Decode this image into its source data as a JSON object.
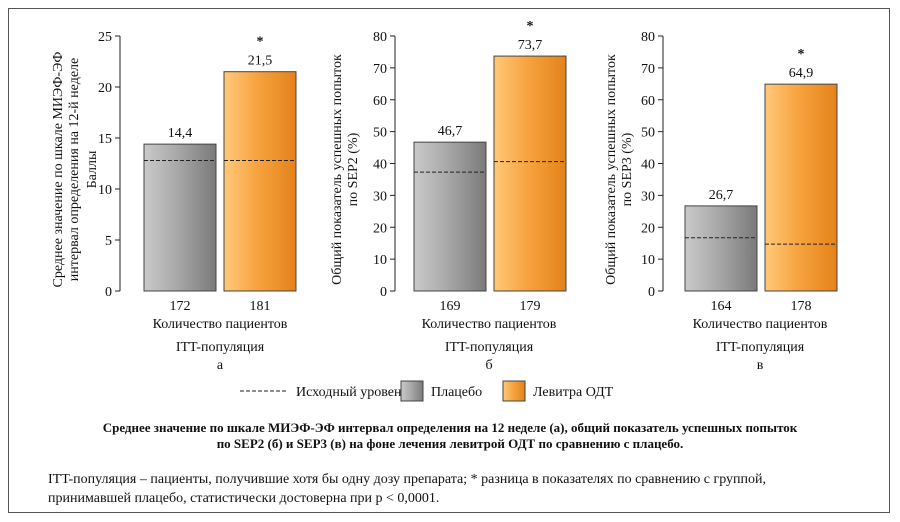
{
  "chart_data": [
    {
      "type": "bar",
      "panel_letter": "а",
      "population": "ITT-популяция",
      "ylabel_lines": [
        "Среднее значение по шкале МИЭФ-ЭФ",
        "интервал определения на 12-й неделе",
        "Баллы"
      ],
      "xlabel": "Количество пациентов",
      "ylim": [
        0,
        25
      ],
      "yticks": [
        0,
        5,
        10,
        15,
        20,
        25
      ],
      "ytick_labels": [
        "0",
        "5",
        "10",
        "15",
        "20",
        "25"
      ],
      "categories": [
        "172",
        "181"
      ],
      "series": [
        {
          "name": "Плацебо",
          "value": 14.4,
          "label": "14,4",
          "baseline": 12.8,
          "color": "#9a9a9a"
        },
        {
          "name": "Левитра ОДТ",
          "value": 21.5,
          "label": "21,5",
          "baseline": 12.8,
          "color": "#f39a2a",
          "significance": "*"
        }
      ]
    },
    {
      "type": "bar",
      "panel_letter": "б",
      "population": "ITT-популяция",
      "ylabel_lines": [
        "Общий показатель успешных попыток",
        "по SEP2 (%)"
      ],
      "xlabel": "Количество пациентов",
      "ylim": [
        0,
        80
      ],
      "yticks": [
        0,
        10,
        20,
        30,
        40,
        50,
        60,
        70,
        80
      ],
      "ytick_labels": [
        "0",
        "10",
        "20",
        "30",
        "40",
        "50",
        "60",
        "70",
        "80"
      ],
      "categories": [
        "169",
        "179"
      ],
      "series": [
        {
          "name": "Плацебо",
          "value": 46.7,
          "label": "46,7",
          "baseline": 37.3,
          "color": "#9a9a9a"
        },
        {
          "name": "Левитра ОДТ",
          "value": 73.7,
          "label": "73,7",
          "baseline": 40.6,
          "color": "#f39a2a",
          "significance": "*"
        }
      ]
    },
    {
      "type": "bar",
      "panel_letter": "в",
      "population": "ITT-популяция",
      "ylabel_lines": [
        "Общий показатель успешных попыток",
        "по SEP3 (%)"
      ],
      "xlabel": "Количество пациентов",
      "ylim": [
        0,
        80
      ],
      "yticks": [
        0,
        10,
        20,
        30,
        40,
        50,
        60,
        70,
        80
      ],
      "ytick_labels": [
        "0",
        "10",
        "20",
        "30",
        "40",
        "50",
        "60",
        "70",
        "80"
      ],
      "categories": [
        "164",
        "178"
      ],
      "series": [
        {
          "name": "Плацебо",
          "value": 26.7,
          "label": "26,7",
          "baseline": 16.7,
          "color": "#9a9a9a"
        },
        {
          "name": "Левитра ОДТ",
          "value": 64.9,
          "label": "64,9",
          "baseline": 14.7,
          "color": "#f39a2a",
          "significance": "*"
        }
      ]
    }
  ],
  "legend": {
    "baseline_label": "Исходный уровень",
    "placebo_label": "Плацебо",
    "levitra_label": "Левитра ОДТ",
    "placebo_color": "#9a9a9a",
    "levitra_color": "#f39a2a"
  },
  "caption": {
    "line1": "Среднее значение по шкале МИЭФ-ЭФ интервал определения на 12 неделе (а), общий показатель успешных попыток",
    "line2": "по SEP2 (б) и SEP3 (в) на фоне лечения левитрой ОДТ по сравнению с плацебо."
  },
  "note": {
    "line1": "ITT-популяция – пациенты, получившие хотя бы одну дозу препарата; * разница в показателях по сравнению с группой,",
    "line2": "принимавшей плацебо, статистически достоверна при p < 0,0001."
  }
}
